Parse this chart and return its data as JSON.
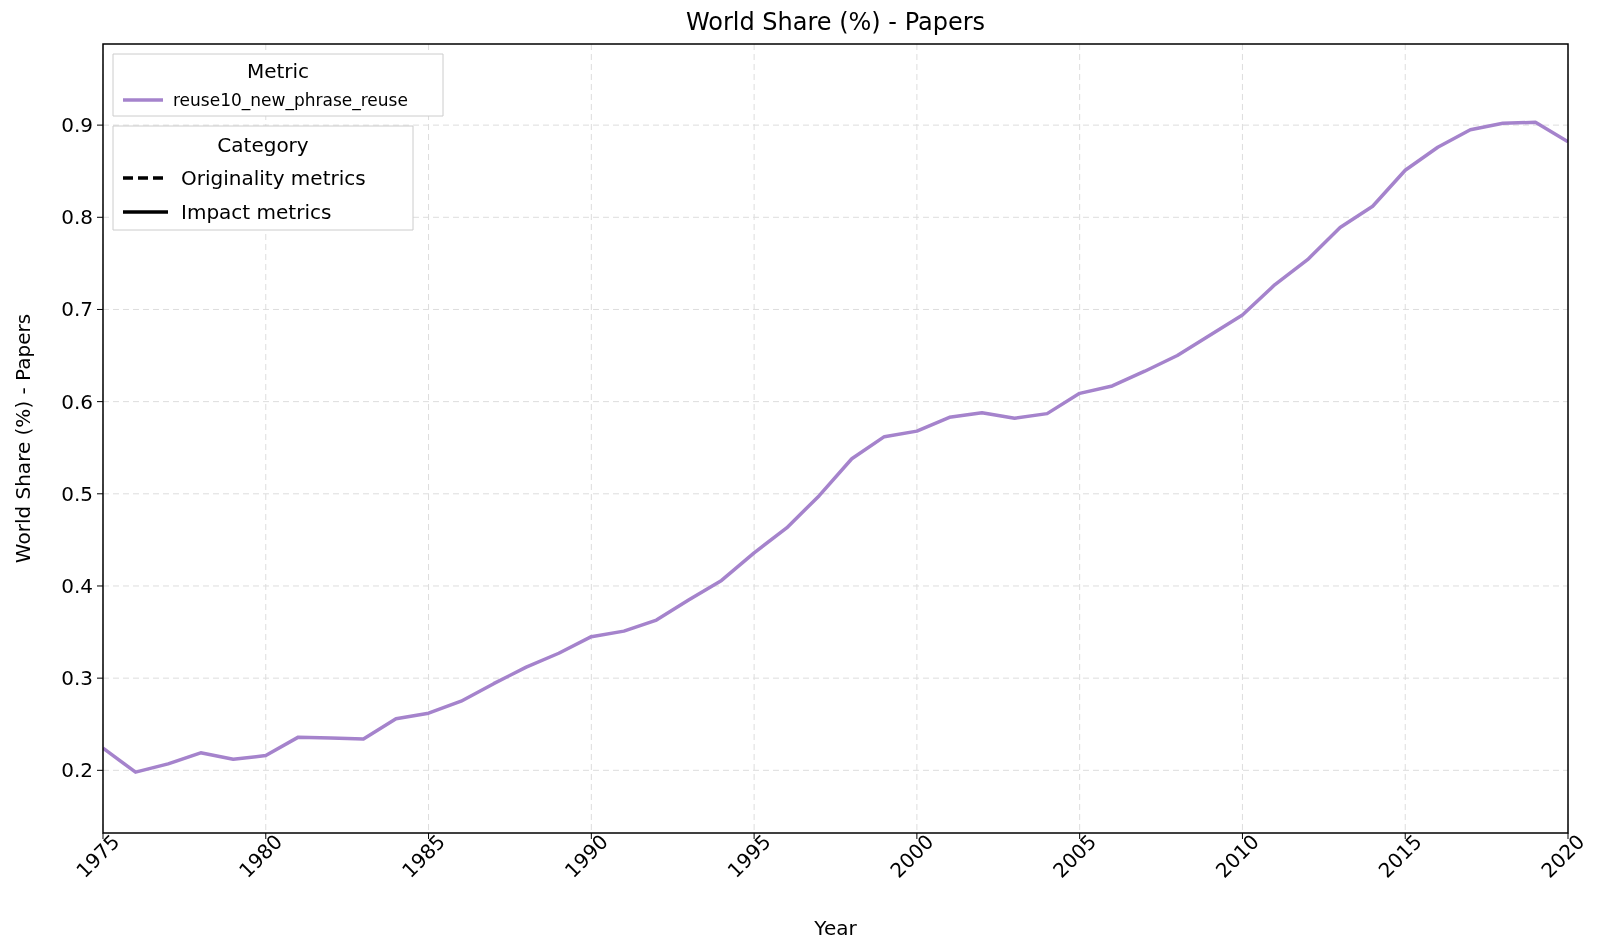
{
  "chart_data": {
    "type": "line",
    "title": "World Share (%) - Papers",
    "xlabel": "Year",
    "ylabel": "World Share (%) - Papers",
    "legend_title": "Metric",
    "annotations": [
      "Category"
    ],
    "x": [
      1975,
      1976,
      1977,
      1978,
      1979,
      1980,
      1981,
      1982,
      1983,
      1984,
      1985,
      1986,
      1987,
      1988,
      1989,
      1990,
      1991,
      1992,
      1993,
      1994,
      1995,
      1996,
      1997,
      1998,
      1999,
      2000,
      2001,
      2002,
      2003,
      2004,
      2005,
      2006,
      2007,
      2008,
      2009,
      2010,
      2011,
      2012,
      2013,
      2014,
      2015,
      2016,
      2017,
      2018,
      2019,
      2020
    ],
    "series": [
      {
        "name": "reuse10_new_phrase_reuse",
        "color": "#a583cc",
        "line_style": "solid",
        "values": [
          0.224,
          0.198,
          0.207,
          0.219,
          0.212,
          0.216,
          0.236,
          0.235,
          0.234,
          0.256,
          0.262,
          0.275,
          0.294,
          0.312,
          0.327,
          0.345,
          0.351,
          0.363,
          0.385,
          0.406,
          0.436,
          0.463,
          0.498,
          0.538,
          0.562,
          0.568,
          0.583,
          0.588,
          0.582,
          0.587,
          0.609,
          0.617,
          0.633,
          0.65,
          0.672,
          0.694,
          0.727,
          0.754,
          0.789,
          0.812,
          0.851,
          0.876,
          0.895,
          0.902,
          0.903,
          0.882
        ]
      },
      {
        "name": "Originality metrics",
        "color": "#000000",
        "line_style": "dashed",
        "values": [
          null,
          null,
          null,
          null,
          null,
          null,
          null,
          null,
          null,
          null,
          null,
          null,
          null,
          null,
          null,
          null,
          null,
          null,
          null,
          null,
          null,
          null,
          null,
          null,
          null,
          null,
          null,
          null,
          null,
          null,
          null,
          null,
          null,
          null,
          null,
          null,
          null,
          null,
          null,
          null,
          null,
          null,
          null,
          null,
          null,
          null
        ]
      },
      {
        "name": "Impact metrics",
        "color": "#000000",
        "line_style": "solid",
        "values": [
          null,
          null,
          null,
          null,
          null,
          null,
          null,
          null,
          null,
          null,
          null,
          null,
          null,
          null,
          null,
          null,
          null,
          null,
          null,
          null,
          null,
          null,
          null,
          null,
          null,
          null,
          null,
          null,
          null,
          null,
          null,
          null,
          null,
          null,
          null,
          null,
          null,
          null,
          null,
          null,
          null,
          null,
          null,
          null,
          null,
          null
        ]
      }
    ],
    "xlim": [
      1975,
      2020
    ],
    "xticks": [
      1975,
      1980,
      1985,
      1990,
      1995,
      2000,
      2005,
      2010,
      2015,
      2020
    ],
    "ylim": [
      0.132,
      0.988
    ],
    "yticks": [
      0.2,
      0.3,
      0.4,
      0.5,
      0.6,
      0.7,
      0.8,
      0.9
    ],
    "grid": true,
    "legend": "top left"
  }
}
